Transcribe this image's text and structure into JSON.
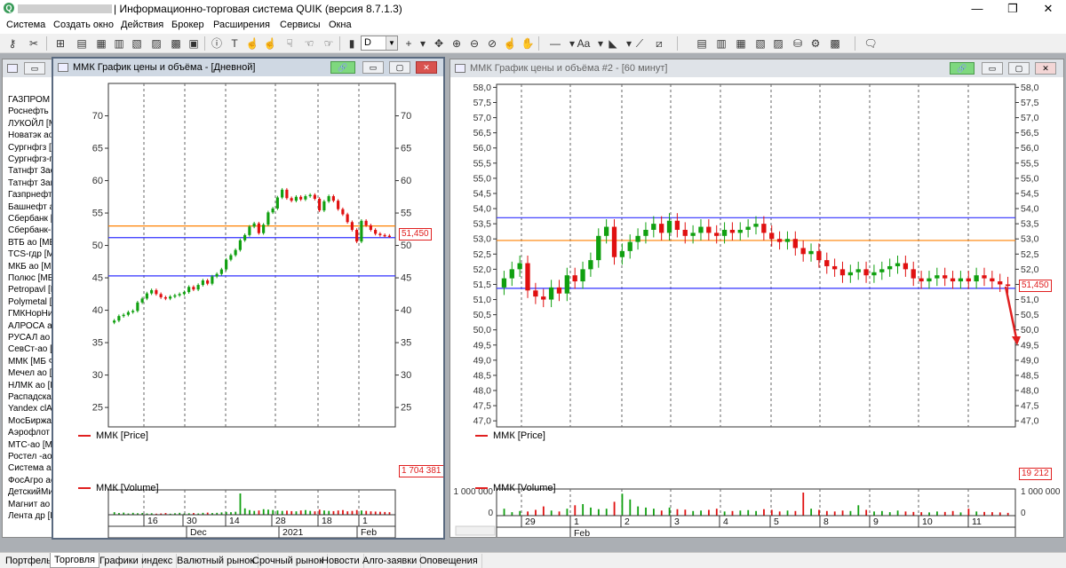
{
  "app": {
    "title": "| Информационно-торговая система QUIK (версия 8.7.1.3)",
    "window_controls": [
      "—",
      "❐",
      "✕"
    ]
  },
  "menu": [
    "Система",
    "Создать окно",
    "Действия",
    "Брокер",
    "Расширения",
    "Сервисы",
    "Окна"
  ],
  "toolbar": {
    "interval_value": "D"
  },
  "securities": [
    "ГАЗПРОМ ао",
    "Роснефть [М",
    "ЛУКОЙЛ [М",
    "Новатэк ао",
    "Сургнфгз [М",
    "Сургнфгз-п",
    "Татнфт 3ао",
    "Татнфт 3ап",
    "Газпрнефть",
    "Башнефт ап",
    "Сбербанк [М",
    "Сбербанк-п",
    "ВТБ ао [МБ",
    "TCS-гдр [М",
    "МКБ ао [МБ",
    "Полюс [МБ",
    "Petropavl [М",
    "Polymetal [М",
    "ГМКНорНик",
    "АЛРОСА ао",
    "РУСАЛ ао [",
    "СевСт-ао [М",
    "ММК [МБ Ф",
    "Мечел ао [М",
    "НЛМК ао [М",
    "Распадская",
    "Yandex clA",
    "МосБиржа",
    "Аэрофлот [",
    "МТС-ао [МБ",
    "Ростел -ао",
    "Система ао",
    "ФосАгро ао",
    "ДетскийМир",
    "Магнит ао [",
    "Лента др [М"
  ],
  "chart_daily": {
    "window_title": "ММК График цены и объёма - [Дневной]",
    "price_legend": "ММК [Price]",
    "volume_legend": "ММК [Volume]",
    "last_price": "51,450",
    "last_volume": "1 704 381",
    "x_ticks_top": [
      "16",
      "30",
      "14",
      "28",
      "18",
      "1"
    ],
    "x_ticks_bottom": [
      "Dec",
      "2021",
      "Feb"
    ]
  },
  "chart_hourly": {
    "window_title": "ММК График цены и объёма #2 - [60 минут]",
    "price_legend": "ММК [Price]",
    "volume_legend": "ММК [Volume]",
    "last_price": "51,450",
    "last_volume": "19 212",
    "volume_scale": [
      "1 000 000",
      "0"
    ],
    "x_ticks_top": [
      "29",
      "1",
      "2",
      "3",
      "4",
      "5",
      "8",
      "9",
      "10",
      "11"
    ],
    "x_ticks_bottom": [
      "Feb"
    ]
  },
  "tabs": [
    "Портфель",
    "Торговля",
    "Графики",
    "индекс",
    "Валютный рынок",
    "Срочный рынок",
    "Новости",
    "Алго-заявки",
    "Оповещения"
  ],
  "active_tab": "Торговля",
  "chart_data": [
    {
      "type": "candlestick",
      "title": "ММК График цены и объёма - [Дневной]",
      "ylim": [
        22,
        75
      ],
      "yticks": [
        25,
        30,
        35,
        40,
        45,
        50,
        55,
        60,
        65,
        70
      ],
      "hlines": [
        {
          "value": 53.0,
          "color": "#ff8000"
        },
        {
          "value": 51.2,
          "color": "#3030ff"
        },
        {
          "value": 45.3,
          "color": "#3030ff"
        }
      ],
      "close_series": [
        38.4,
        39.1,
        39.3,
        39.7,
        39.9,
        41.2,
        41.8,
        42.6,
        43.1,
        42.5,
        42.0,
        41.8,
        42.1,
        42.3,
        42.5,
        42.8,
        43.6,
        43.2,
        43.9,
        44.6,
        44.1,
        45.2,
        45.6,
        46.3,
        47.8,
        48.5,
        49.3,
        50.8,
        51.6,
        52.9,
        53.4,
        51.9,
        53.2,
        55.1,
        55.7,
        57.4,
        58.6,
        57.3,
        56.9,
        57.5,
        57.1,
        57.6,
        57.8,
        57.2,
        55.4,
        56.8,
        57.6,
        56.9,
        55.6,
        54.8,
        53.6,
        52.4,
        50.6,
        53.8,
        53.1,
        52.4,
        51.8,
        51.6,
        51.5,
        51.45
      ],
      "volume_series": [
        12,
        8,
        10,
        6,
        9,
        7,
        8,
        6,
        7,
        5,
        6,
        8,
        5,
        7,
        9,
        6,
        7,
        8,
        6,
        9,
        10,
        8,
        9,
        11,
        13,
        12,
        14,
        100,
        30,
        22,
        18,
        20,
        26,
        24,
        22,
        20,
        18,
        19,
        17,
        16,
        20,
        22,
        18,
        16,
        24,
        20,
        18,
        17,
        20,
        22,
        16,
        18,
        22,
        20,
        18,
        16,
        15,
        14,
        13,
        12
      ],
      "volume_last": 1704381
    },
    {
      "type": "candlestick",
      "title": "ММК График цены и объёма #2 - [60 минут]",
      "ylim": [
        46.8,
        58.1
      ],
      "yticks": [
        47.0,
        47.5,
        48.0,
        48.5,
        49.0,
        49.5,
        50.0,
        50.5,
        51.0,
        51.5,
        52.0,
        52.5,
        53.0,
        53.5,
        54.0,
        54.5,
        55.0,
        55.5,
        56.0,
        56.5,
        57.0,
        57.5,
        58.0
      ],
      "hlines": [
        {
          "value": 53.7,
          "color": "#3030ff"
        },
        {
          "value": 52.95,
          "color": "#ff8000"
        },
        {
          "value": 51.37,
          "color": "#3030ff"
        }
      ],
      "close_series": [
        51.7,
        52.0,
        52.2,
        51.3,
        51.1,
        51.0,
        51.4,
        51.2,
        51.8,
        51.6,
        52.0,
        52.3,
        53.1,
        53.4,
        52.4,
        52.6,
        52.9,
        53.1,
        53.3,
        53.5,
        53.2,
        53.6,
        53.3,
        53.1,
        53.2,
        53.4,
        53.2,
        53.1,
        53.3,
        53.2,
        53.3,
        53.4,
        53.5,
        53.2,
        53.0,
        52.9,
        53.0,
        52.7,
        52.5,
        52.6,
        52.3,
        52.1,
        52.0,
        51.8,
        51.9,
        52.0,
        51.8,
        51.9,
        52.0,
        52.1,
        52.2,
        52.0,
        51.7,
        51.6,
        51.7,
        51.8,
        51.7,
        51.6,
        51.7,
        51.6,
        51.8,
        51.7,
        51.6,
        51.5,
        51.45
      ],
      "volume_series": [
        30,
        15,
        20,
        18,
        25,
        40,
        22,
        18,
        30,
        45,
        50,
        35,
        28,
        30,
        60,
        95,
        70,
        40,
        35,
        30,
        22,
        35,
        28,
        26,
        20,
        22,
        25,
        30,
        18,
        20,
        22,
        24,
        20,
        28,
        25,
        18,
        22,
        20,
        100,
        30,
        25,
        20,
        18,
        22,
        20,
        45,
        25,
        18,
        20,
        15,
        22,
        18,
        16,
        15,
        14,
        18,
        16,
        20,
        14,
        30,
        18,
        16,
        15,
        14,
        12
      ],
      "volume_last": 19212,
      "volume_ylim": [
        0,
        1000000
      ]
    }
  ]
}
